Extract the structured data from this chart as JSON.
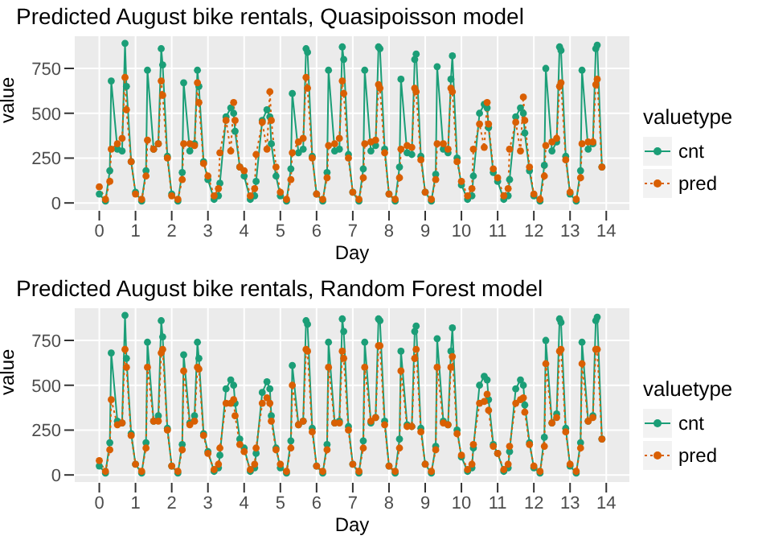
{
  "chart_data": [
    {
      "type": "line",
      "title": "Predicted August bike rentals, Quasipoisson model",
      "xlabel": "Day",
      "ylabel": "value",
      "legend_title": "valuetype",
      "legend": "right",
      "grid": true,
      "marker": "circle",
      "xlim": [
        -0.7,
        14.66
      ],
      "xticks": [
        0,
        1,
        2,
        3,
        4,
        5,
        6,
        7,
        8,
        9,
        10,
        11,
        12,
        13,
        14
      ],
      "ylim": [
        -44,
        934
      ],
      "yticks": [
        0,
        250,
        500,
        750
      ],
      "x": [
        0,
        0.17,
        0.29,
        0.33,
        0.5,
        0.63,
        0.71,
        0.75,
        0.88,
        1,
        1.17,
        1.29,
        1.33,
        1.5,
        1.63,
        1.71,
        1.75,
        1.88,
        2,
        2.17,
        2.29,
        2.33,
        2.5,
        2.63,
        2.71,
        2.75,
        2.88,
        3,
        3.17,
        3.29,
        3.33,
        3.5,
        3.63,
        3.71,
        3.75,
        3.88,
        4,
        4.17,
        4.29,
        4.33,
        4.5,
        4.63,
        4.71,
        4.75,
        4.88,
        5,
        5.17,
        5.29,
        5.33,
        5.5,
        5.63,
        5.71,
        5.75,
        5.88,
        6,
        6.17,
        6.29,
        6.33,
        6.5,
        6.63,
        6.71,
        6.75,
        6.88,
        7,
        7.17,
        7.29,
        7.33,
        7.5,
        7.63,
        7.71,
        7.75,
        7.88,
        8,
        8.17,
        8.29,
        8.33,
        8.5,
        8.63,
        8.71,
        8.75,
        8.88,
        9,
        9.17,
        9.29,
        9.33,
        9.5,
        9.63,
        9.71,
        9.75,
        9.88,
        10,
        10.17,
        10.29,
        10.33,
        10.5,
        10.63,
        10.71,
        10.75,
        10.88,
        11,
        11.17,
        11.29,
        11.33,
        11.5,
        11.63,
        11.71,
        11.75,
        11.88,
        12,
        12.17,
        12.29,
        12.33,
        12.5,
        12.63,
        12.71,
        12.75,
        12.88,
        13,
        13.17,
        13.29,
        13.33,
        13.5,
        13.63,
        13.71,
        13.75,
        13.88
      ],
      "series": [
        {
          "name": "cnt",
          "color": "#1b9e77",
          "line_style": "solid",
          "values": [
            50,
            10,
            180,
            680,
            300,
            290,
            890,
            650,
            230,
            60,
            10,
            180,
            740,
            300,
            330,
            860,
            770,
            260,
            50,
            10,
            170,
            670,
            290,
            330,
            740,
            650,
            230,
            130,
            20,
            40,
            110,
            480,
            530,
            500,
            400,
            200,
            150,
            20,
            40,
            120,
            460,
            520,
            480,
            330,
            150,
            40,
            10,
            190,
            610,
            280,
            300,
            860,
            840,
            260,
            50,
            10,
            170,
            740,
            290,
            300,
            870,
            800,
            270,
            60,
            10,
            190,
            740,
            290,
            320,
            870,
            860,
            300,
            50,
            10,
            200,
            690,
            280,
            270,
            800,
            830,
            260,
            60,
            10,
            160,
            760,
            300,
            280,
            690,
            820,
            250,
            100,
            20,
            40,
            150,
            500,
            550,
            530,
            420,
            170,
            120,
            20,
            40,
            130,
            480,
            530,
            500,
            390,
            180,
            40,
            10,
            210,
            750,
            290,
            340,
            870,
            850,
            260,
            50,
            10,
            180,
            740,
            300,
            330,
            860,
            880,
            200
          ]
        },
        {
          "name": "pred",
          "color": "#d95f02",
          "line_style": "dotted",
          "values": [
            90,
            20,
            120,
            300,
            330,
            360,
            700,
            520,
            230,
            50,
            20,
            150,
            350,
            300,
            330,
            680,
            600,
            250,
            40,
            20,
            130,
            330,
            330,
            320,
            670,
            560,
            220,
            150,
            40,
            80,
            280,
            460,
            290,
            560,
            460,
            200,
            180,
            40,
            80,
            270,
            450,
            300,
            620,
            460,
            200,
            60,
            20,
            130,
            280,
            340,
            360,
            700,
            640,
            250,
            50,
            20,
            140,
            320,
            330,
            360,
            680,
            610,
            250,
            60,
            20,
            140,
            330,
            340,
            350,
            660,
            640,
            280,
            50,
            20,
            140,
            300,
            320,
            310,
            640,
            620,
            240,
            60,
            20,
            130,
            330,
            330,
            300,
            640,
            620,
            230,
            120,
            40,
            80,
            300,
            440,
            310,
            560,
            440,
            190,
            140,
            40,
            80,
            300,
            450,
            290,
            590,
            460,
            200,
            50,
            20,
            150,
            320,
            340,
            360,
            650,
            670,
            240,
            60,
            20,
            140,
            330,
            340,
            340,
            660,
            690,
            200
          ]
        }
      ]
    },
    {
      "type": "line",
      "title": "Predicted August bike rentals, Random Forest model",
      "xlabel": "Day",
      "ylabel": "value",
      "legend_title": "valuetype",
      "legend": "right",
      "grid": true,
      "marker": "circle",
      "xlim": [
        -0.7,
        14.66
      ],
      "xticks": [
        0,
        1,
        2,
        3,
        4,
        5,
        6,
        7,
        8,
        9,
        10,
        11,
        12,
        13,
        14
      ],
      "ylim": [
        -44,
        934
      ],
      "yticks": [
        0,
        250,
        500,
        750
      ],
      "x": [
        0,
        0.17,
        0.29,
        0.33,
        0.5,
        0.63,
        0.71,
        0.75,
        0.88,
        1,
        1.17,
        1.29,
        1.33,
        1.5,
        1.63,
        1.71,
        1.75,
        1.88,
        2,
        2.17,
        2.29,
        2.33,
        2.5,
        2.63,
        2.71,
        2.75,
        2.88,
        3,
        3.17,
        3.29,
        3.33,
        3.5,
        3.63,
        3.71,
        3.75,
        3.88,
        4,
        4.17,
        4.29,
        4.33,
        4.5,
        4.63,
        4.71,
        4.75,
        4.88,
        5,
        5.17,
        5.29,
        5.33,
        5.5,
        5.63,
        5.71,
        5.75,
        5.88,
        6,
        6.17,
        6.29,
        6.33,
        6.5,
        6.63,
        6.71,
        6.75,
        6.88,
        7,
        7.17,
        7.29,
        7.33,
        7.5,
        7.63,
        7.71,
        7.75,
        7.88,
        8,
        8.17,
        8.29,
        8.33,
        8.5,
        8.63,
        8.71,
        8.75,
        8.88,
        9,
        9.17,
        9.29,
        9.33,
        9.5,
        9.63,
        9.71,
        9.75,
        9.88,
        10,
        10.17,
        10.29,
        10.33,
        10.5,
        10.63,
        10.71,
        10.75,
        10.88,
        11,
        11.17,
        11.29,
        11.33,
        11.5,
        11.63,
        11.71,
        11.75,
        11.88,
        12,
        12.17,
        12.29,
        12.33,
        12.5,
        12.63,
        12.71,
        12.75,
        12.88,
        13,
        13.17,
        13.29,
        13.33,
        13.5,
        13.63,
        13.71,
        13.75,
        13.88
      ],
      "series": [
        {
          "name": "cnt",
          "color": "#1b9e77",
          "line_style": "solid",
          "values": [
            50,
            10,
            180,
            680,
            300,
            290,
            890,
            650,
            230,
            60,
            10,
            180,
            740,
            300,
            330,
            860,
            770,
            260,
            50,
            10,
            170,
            670,
            290,
            330,
            740,
            650,
            230,
            130,
            20,
            40,
            110,
            480,
            530,
            500,
            400,
            200,
            150,
            20,
            40,
            120,
            460,
            520,
            480,
            330,
            150,
            40,
            10,
            190,
            610,
            280,
            300,
            860,
            840,
            260,
            50,
            10,
            170,
            740,
            290,
            300,
            870,
            800,
            270,
            60,
            10,
            190,
            740,
            290,
            320,
            870,
            860,
            300,
            50,
            10,
            200,
            690,
            280,
            270,
            800,
            830,
            260,
            60,
            10,
            160,
            760,
            300,
            280,
            690,
            820,
            250,
            100,
            20,
            40,
            150,
            500,
            550,
            530,
            420,
            170,
            120,
            20,
            40,
            130,
            480,
            530,
            500,
            390,
            180,
            40,
            10,
            210,
            750,
            290,
            340,
            870,
            850,
            260,
            50,
            10,
            180,
            740,
            300,
            330,
            860,
            880,
            200
          ]
        },
        {
          "name": "pred",
          "color": "#d95f02",
          "line_style": "dotted",
          "values": [
            80,
            20,
            140,
            420,
            280,
            290,
            700,
            600,
            220,
            60,
            20,
            150,
            600,
            300,
            300,
            680,
            700,
            250,
            50,
            20,
            140,
            580,
            280,
            300,
            600,
            590,
            220,
            120,
            30,
            60,
            150,
            400,
            400,
            420,
            330,
            170,
            130,
            30,
            60,
            150,
            400,
            430,
            400,
            300,
            140,
            60,
            20,
            150,
            500,
            280,
            300,
            700,
            690,
            240,
            50,
            20,
            140,
            600,
            290,
            290,
            690,
            650,
            250,
            60,
            20,
            150,
            600,
            300,
            320,
            720,
            720,
            280,
            50,
            20,
            150,
            580,
            270,
            270,
            650,
            700,
            240,
            60,
            20,
            140,
            600,
            290,
            280,
            600,
            660,
            230,
            110,
            30,
            60,
            170,
            400,
            410,
            450,
            360,
            160,
            120,
            30,
            60,
            160,
            400,
            420,
            430,
            350,
            170,
            50,
            20,
            160,
            620,
            290,
            320,
            690,
            700,
            240,
            60,
            20,
            150,
            620,
            300,
            320,
            700,
            700,
            200
          ]
        }
      ]
    }
  ]
}
